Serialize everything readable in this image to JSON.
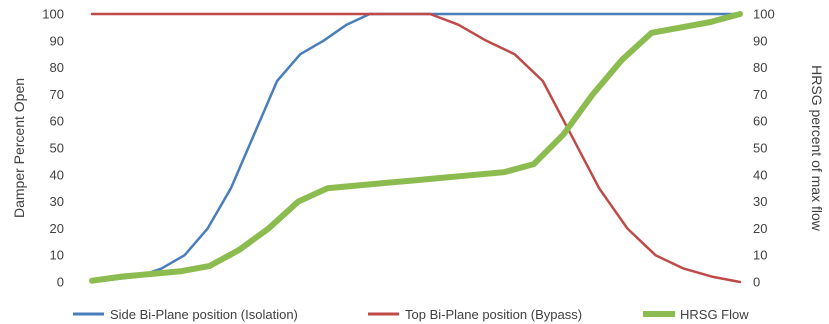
{
  "chart_data": {
    "type": "line",
    "title": "",
    "ylabel": "Damper Percent Open",
    "y2label": "HRSG percent of max flow",
    "ylim": [
      0,
      100
    ],
    "y2lim": [
      0,
      100
    ],
    "yticks": [
      "0",
      "10",
      "20",
      "30",
      "40",
      "50",
      "60",
      "70",
      "80",
      "90",
      "100"
    ],
    "y2ticks": [
      "0",
      "10",
      "20",
      "30",
      "40",
      "50",
      "60",
      "70",
      "80",
      "90",
      "100"
    ],
    "x_points": 29,
    "grid": "none",
    "legend_position": "bottom",
    "series": [
      {
        "name": "Side Bi-Plane position (Isolation)",
        "color": "#4a7ebb",
        "axis": "left",
        "values": [
          0,
          1,
          2,
          5,
          10,
          20,
          35,
          55,
          75,
          85,
          90,
          96,
          100,
          100,
          100,
          100,
          100,
          100,
          100,
          100,
          100,
          100,
          100,
          100,
          100,
          100,
          100,
          100,
          100
        ]
      },
      {
        "name": "Top Bi-Plane position (Bypass)",
        "color": "#be4b48",
        "axis": "left",
        "values": [
          100,
          100,
          100,
          100,
          100,
          100,
          100,
          100,
          100,
          100,
          100,
          100,
          100,
          96,
          90,
          85,
          75,
          55,
          35,
          20,
          10,
          5,
          2,
          0
        ]
      },
      {
        "name": "HRSG Flow",
        "color": "#8cbc50",
        "axis": "right",
        "values": [
          0.5,
          2,
          3,
          4,
          6,
          12,
          20,
          30,
          35,
          36,
          37,
          38,
          39,
          40,
          41,
          44,
          55,
          70,
          83,
          93,
          95,
          97,
          100
        ]
      }
    ]
  }
}
